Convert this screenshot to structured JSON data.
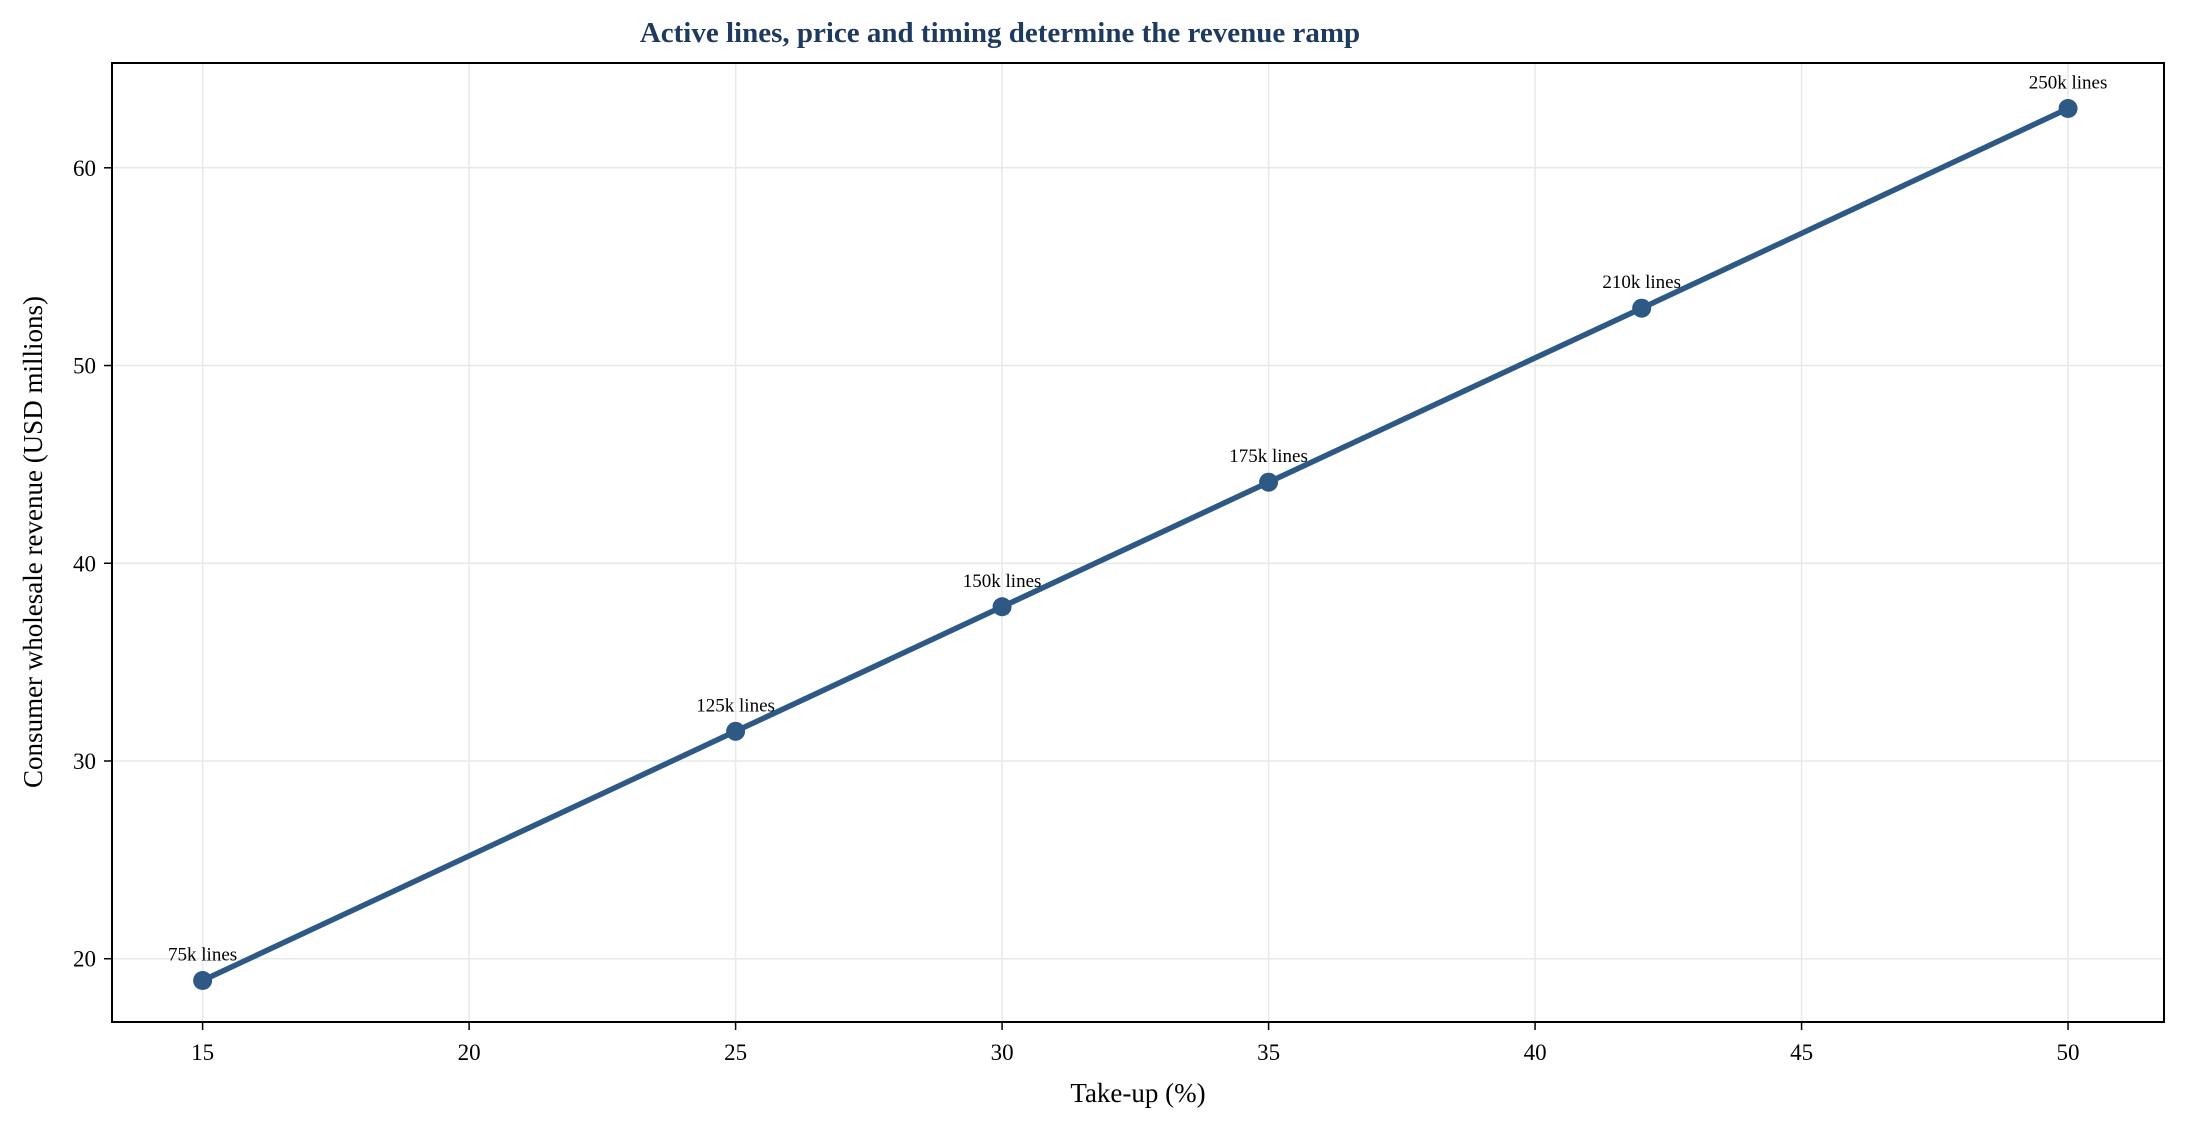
{
  "chart_data": {
    "type": "line",
    "title": "Active lines, price and timing determine the revenue ramp",
    "xlabel": "Take-up (%)",
    "ylabel": "Consumer wholesale revenue (USD millions)",
    "xlim": [
      13.3,
      51.8
    ],
    "ylim": [
      16.8,
      65.3
    ],
    "x_ticks": [
      15,
      20,
      25,
      30,
      35,
      40,
      45,
      50
    ],
    "y_ticks": [
      20,
      30,
      40,
      50,
      60
    ],
    "x_tick_labels": [
      "15",
      "20",
      "25",
      "30",
      "35",
      "40",
      "45",
      "50"
    ],
    "y_tick_labels": [
      "20",
      "30",
      "40",
      "50",
      "60"
    ],
    "grid": true,
    "series": [
      {
        "x": [
          15,
          25,
          30,
          35,
          42,
          50
        ],
        "y": [
          18.9,
          31.5,
          37.8,
          44.1,
          52.9,
          63.0
        ],
        "point_labels": [
          "75k lines",
          "125k lines",
          "150k lines",
          "175k lines",
          "210k lines",
          "250k lines"
        ],
        "color": "#2e5984"
      }
    ],
    "title_color": "#1f3a5f",
    "grid_color": "#e8e8e8"
  }
}
